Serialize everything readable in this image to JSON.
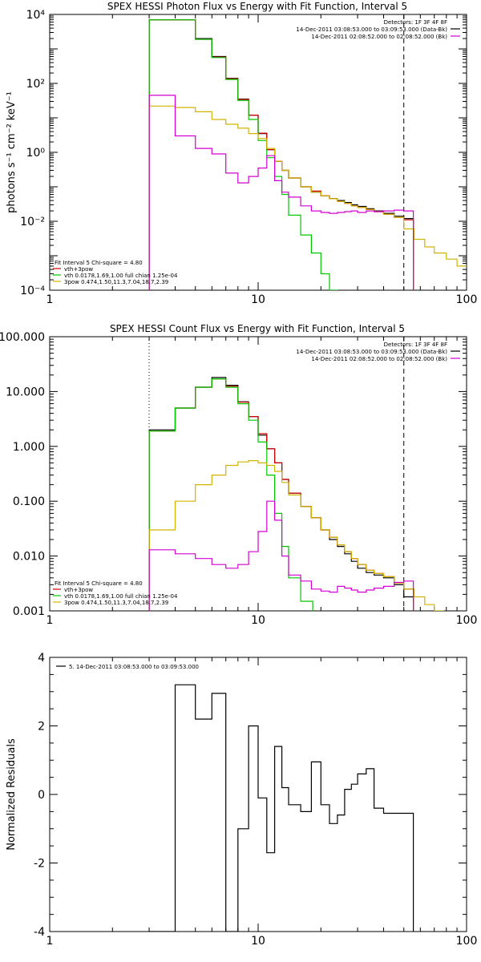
{
  "chart_data": [
    {
      "type": "line",
      "title": "SPEX HESSI Photon Flux vs Energy with Fit Function, Interval 5",
      "xlabel": "",
      "ylabel": "photons s⁻¹ cm⁻² keV⁻¹",
      "xscale": "log",
      "yscale": "log",
      "xlim": [
        1,
        100
      ],
      "ylim": [
        0.0001,
        10000
      ],
      "x_ticks": [
        "1",
        "10",
        "100"
      ],
      "y_ticks": [
        "10⁻⁴",
        "10⁻²",
        "10⁰",
        "10²",
        "10⁴"
      ],
      "legend_top_right": [
        {
          "text": "Detectors: 1F 3F 4F 8F",
          "color": "#000000"
        },
        {
          "text": "14-Dec-2011 03:08:53.000 to 03:09:53.000 (Data-Bk)",
          "color": "#000000"
        },
        {
          "text": "14-Dec-2011 02:08:52.000 to 02:08:52.000 (Bk)",
          "color": "#d200d2"
        }
      ],
      "legend_bottom_left": [
        {
          "text": "Fit Interval 5   Chi-square = 4.80",
          "color": "#000000"
        },
        {
          "text": "vth+3pow",
          "color": "#d00000"
        },
        {
          "text": "vth 0.0178,1.69,1.00  full chian 1.25e-04",
          "color": "#00c800"
        },
        {
          "text": "3pow 0.474,1.50,11.3,7.04,18.7,2.39",
          "color": "#d2b400"
        }
      ],
      "vlines": [
        3,
        50
      ],
      "series": [
        {
          "color": "#000000",
          "x": [
            3,
            4,
            5,
            6,
            7,
            8,
            9,
            10,
            11,
            12,
            13,
            14,
            16,
            18,
            20,
            22,
            24,
            26,
            28,
            30,
            33,
            36,
            40,
            45,
            50
          ],
          "values": [
            7000,
            7000,
            2000,
            600,
            140,
            35,
            12,
            3.5,
            1.2,
            0.55,
            0.3,
            0.18,
            0.1,
            0.07,
            0.055,
            0.045,
            0.04,
            0.035,
            0.03,
            0.027,
            0.023,
            0.02,
            0.017,
            0.014,
            0.012
          ]
        },
        {
          "color": "#d00000",
          "x": [
            3,
            4,
            5,
            6,
            7,
            8,
            9,
            10,
            11,
            12,
            13,
            14,
            16,
            18,
            20,
            22,
            24,
            26,
            28,
            30,
            33,
            36,
            40,
            45,
            50
          ],
          "values": [
            7000,
            7000,
            1900,
            580,
            135,
            34,
            12,
            3.6,
            1.2,
            0.55,
            0.3,
            0.18,
            0.1,
            0.075,
            0.055,
            0.045,
            0.038,
            0.033,
            0.028,
            0.025,
            0.022,
            0.019,
            0.016,
            0.013,
            0.011
          ]
        },
        {
          "color": "#00c800",
          "x": [
            3,
            4,
            5,
            6,
            7,
            8,
            9,
            10,
            11,
            12,
            13,
            14,
            16,
            18,
            20,
            22
          ],
          "values": [
            7000,
            7000,
            1900,
            560,
            130,
            32,
            9,
            2.2,
            0.7,
            0.2,
            0.06,
            0.015,
            0.004,
            0.0012,
            0.0003,
            0.0001
          ]
        },
        {
          "color": "#d2b400",
          "x": [
            3,
            4,
            5,
            6,
            7,
            8,
            9,
            10,
            11,
            12,
            13,
            14,
            16,
            18,
            20,
            22,
            24,
            26,
            28,
            30,
            33,
            36,
            40,
            45,
            50,
            56,
            63,
            70,
            80,
            90
          ],
          "values": [
            22,
            20,
            15,
            9,
            6.5,
            5,
            3.5,
            2.5,
            1.3,
            0.55,
            0.3,
            0.18,
            0.1,
            0.07,
            0.055,
            0.045,
            0.038,
            0.033,
            0.028,
            0.025,
            0.022,
            0.019,
            0.016,
            0.013,
            0.006,
            0.003,
            0.0018,
            0.0012,
            0.0008,
            0.0005
          ]
        },
        {
          "color": "#d200d2",
          "x": [
            3,
            4,
            5,
            6,
            7,
            8,
            9,
            10,
            11,
            12,
            13,
            14,
            16,
            18,
            20,
            22,
            24,
            26,
            28,
            30,
            33,
            36,
            40,
            45,
            50
          ],
          "values": [
            45,
            3,
            1.3,
            0.9,
            0.25,
            0.13,
            0.2,
            0.35,
            0.8,
            0.15,
            0.07,
            0.05,
            0.028,
            0.02,
            0.018,
            0.017,
            0.018,
            0.019,
            0.02,
            0.018,
            0.02,
            0.019,
            0.02,
            0.021,
            0.02
          ]
        }
      ]
    },
    {
      "type": "line",
      "title": "SPEX HESSI Count Flux vs Energy with Fit Function, Interval 5",
      "xlabel": "",
      "ylabel": "",
      "xscale": "log",
      "yscale": "log",
      "xlim": [
        1,
        100
      ],
      "ylim": [
        0.001,
        100
      ],
      "x_ticks": [
        "1",
        "10",
        "100"
      ],
      "y_ticks": [
        "0.001",
        "0.010",
        "0.100",
        "1.000",
        "10.000",
        "100.000"
      ],
      "legend_top_right": [
        {
          "text": "Detectors: 1F 3F 4F 8F",
          "color": "#000000"
        },
        {
          "text": "14-Dec-2011 03:08:53.000 to 03:09:53.000 (Data-Bk)",
          "color": "#000000"
        },
        {
          "text": "14-Dec-2011 02:08:52.000 to 02:08:52.000 (Bk)",
          "color": "#d200d2"
        }
      ],
      "legend_bottom_left": [
        {
          "text": "Fit Interval 5   Chi-square = 4.80",
          "color": "#000000"
        },
        {
          "text": "vth+3pow",
          "color": "#d00000"
        },
        {
          "text": "vth 0.0178,1.69,1.00  full chian 1.25e-04",
          "color": "#00c800"
        },
        {
          "text": "3pow 0.474,1.50,11.3,7.04,18.7,2.39",
          "color": "#d2b400"
        }
      ],
      "vlines": [
        3,
        50
      ],
      "series": [
        {
          "color": "#000000",
          "x": [
            3,
            4,
            5,
            6,
            7,
            8,
            9,
            10,
            11,
            12,
            13,
            14,
            16,
            18,
            20,
            22,
            24,
            26,
            28,
            30,
            33,
            36,
            40,
            45,
            50
          ],
          "values": [
            2,
            5,
            12,
            18,
            13,
            6.5,
            3.5,
            1.6,
            0.9,
            0.5,
            0.25,
            0.14,
            0.08,
            0.05,
            0.03,
            0.02,
            0.015,
            0.011,
            0.008,
            0.006,
            0.005,
            0.0045,
            0.004,
            0.003,
            0.0018
          ]
        },
        {
          "color": "#d00000",
          "x": [
            3,
            4,
            5,
            6,
            7,
            8,
            9,
            10,
            11,
            12,
            13,
            14,
            16,
            18,
            20,
            22,
            24,
            26,
            28,
            30,
            33,
            36,
            40,
            45,
            50
          ],
          "values": [
            1.9,
            5,
            12,
            17,
            12.5,
            6.4,
            3.5,
            1.7,
            0.9,
            0.5,
            0.25,
            0.14,
            0.08,
            0.05,
            0.03,
            0.022,
            0.016,
            0.012,
            0.009,
            0.007,
            0.0055,
            0.0048,
            0.0042,
            0.0032,
            0.0025
          ]
        },
        {
          "color": "#00c800",
          "x": [
            3,
            4,
            5,
            6,
            7,
            8,
            9,
            10,
            11,
            12,
            13,
            14,
            16
          ],
          "values": [
            1.9,
            5,
            12,
            17,
            12,
            6,
            3,
            1.2,
            0.3,
            0.06,
            0.015,
            0.004,
            0.0015
          ]
        },
        {
          "color": "#d2b400",
          "x": [
            3,
            4,
            5,
            6,
            7,
            8,
            9,
            10,
            11,
            12,
            13,
            14,
            16,
            18,
            20,
            22,
            24,
            26,
            28,
            30,
            33,
            36,
            40,
            45,
            50,
            56,
            63,
            70
          ],
          "values": [
            0.03,
            0.1,
            0.2,
            0.3,
            0.45,
            0.52,
            0.55,
            0.5,
            0.45,
            0.35,
            0.22,
            0.13,
            0.08,
            0.05,
            0.03,
            0.022,
            0.016,
            0.012,
            0.009,
            0.007,
            0.0055,
            0.0048,
            0.0042,
            0.0032,
            0.0025,
            0.0018,
            0.0013,
            0.001
          ]
        },
        {
          "color": "#d200d2",
          "x": [
            3,
            4,
            5,
            6,
            7,
            8,
            9,
            10,
            11,
            12,
            13,
            14,
            16,
            18,
            20,
            22,
            24,
            26,
            28,
            30,
            33,
            36,
            40,
            45,
            50
          ],
          "values": [
            0.013,
            0.011,
            0.009,
            0.007,
            0.006,
            0.007,
            0.012,
            0.028,
            0.1,
            0.045,
            0.01,
            0.0045,
            0.0035,
            0.0025,
            0.0023,
            0.0022,
            0.0028,
            0.0026,
            0.0024,
            0.0022,
            0.0024,
            0.0026,
            0.0028,
            0.0033,
            0.0035
          ]
        }
      ]
    },
    {
      "type": "line",
      "title": "",
      "xlabel": "",
      "ylabel": "Normalized Residuals",
      "xscale": "log",
      "yscale": "linear",
      "xlim": [
        1,
        100
      ],
      "ylim": [
        -4,
        4
      ],
      "x_ticks": [
        "1",
        "10",
        "100"
      ],
      "y_ticks": [
        "-4",
        "-2",
        "0",
        "2",
        "4"
      ],
      "legend_top_left": [
        {
          "text": "5. 14-Dec-2011 03:08:53.000 to 03:09:53.000",
          "color": "#000000"
        }
      ],
      "series": [
        {
          "color": "#000000",
          "x": [
            3,
            4,
            5,
            6,
            7,
            8,
            9,
            10,
            11,
            12,
            13,
            14,
            16,
            18,
            20,
            22,
            24,
            26,
            28,
            30,
            33,
            36,
            40,
            45,
            50
          ],
          "values": [
            -4,
            3.2,
            2.2,
            2.95,
            -4,
            -1,
            2,
            -0.1,
            -1.7,
            1.4,
            0.2,
            -0.3,
            -0.5,
            0.95,
            -0.3,
            -0.85,
            -0.6,
            0.15,
            0.3,
            0.6,
            0.75,
            -0.4,
            -0.55,
            -0.55,
            -0.55
          ]
        }
      ]
    }
  ]
}
